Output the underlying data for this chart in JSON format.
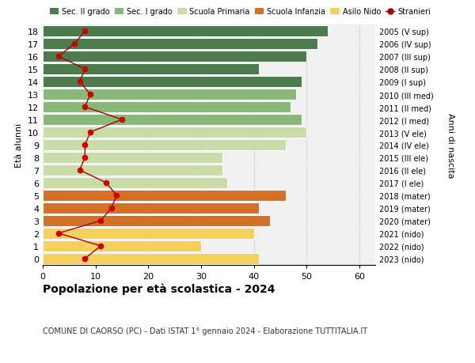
{
  "ages": [
    0,
    1,
    2,
    3,
    4,
    5,
    6,
    7,
    8,
    9,
    10,
    11,
    12,
    13,
    14,
    15,
    16,
    17,
    18
  ],
  "right_labels": [
    "2023 (nido)",
    "2022 (nido)",
    "2021 (nido)",
    "2020 (mater)",
    "2019 (mater)",
    "2018 (mater)",
    "2017 (I ele)",
    "2016 (II ele)",
    "2015 (III ele)",
    "2014 (IV ele)",
    "2013 (V ele)",
    "2012 (I med)",
    "2011 (II med)",
    "2010 (III med)",
    "2009 (I sup)",
    "2008 (II sup)",
    "2007 (III sup)",
    "2006 (IV sup)",
    "2005 (V sup)"
  ],
  "bar_values": [
    41,
    30,
    40,
    43,
    41,
    46,
    35,
    34,
    34,
    46,
    50,
    49,
    47,
    48,
    49,
    41,
    50,
    52,
    54
  ],
  "bar_colors": [
    "#f5d060",
    "#f5d060",
    "#f5d060",
    "#d2722a",
    "#d2722a",
    "#d2722a",
    "#c8dba8",
    "#c8dba8",
    "#c8dba8",
    "#c8dba8",
    "#c8dba8",
    "#8ab87a",
    "#8ab87a",
    "#8ab87a",
    "#4a7c4e",
    "#4a7c4e",
    "#4a7c4e",
    "#4a7c4e",
    "#4a7c4e"
  ],
  "stranieri_values": [
    8,
    11,
    3,
    11,
    13,
    14,
    12,
    7,
    8,
    8,
    9,
    15,
    8,
    9,
    7,
    8,
    3,
    6,
    8
  ],
  "legend_labels": [
    "Sec. II grado",
    "Sec. I grado",
    "Scuola Primaria",
    "Scuola Infanzia",
    "Asilo Nido",
    "Stranieri"
  ],
  "legend_colors": [
    "#4a7c4e",
    "#8ab87a",
    "#c8dba8",
    "#d2722a",
    "#f5d060",
    "#aa0000"
  ],
  "ylabel_left": "Età alunni",
  "ylabel_right": "Anni di nascita",
  "title": "Popolazione per età scolastica - 2024",
  "subtitle": "COMUNE DI CAORSO (PC) - Dati ISTAT 1° gennaio 2024 - Elaborazione TUTTITALIA.IT",
  "xlim": [
    0,
    63
  ],
  "xticks": [
    0,
    10,
    20,
    30,
    40,
    50,
    60
  ],
  "background_color": "#ffffff",
  "plot_bg": "#f0f0f0"
}
